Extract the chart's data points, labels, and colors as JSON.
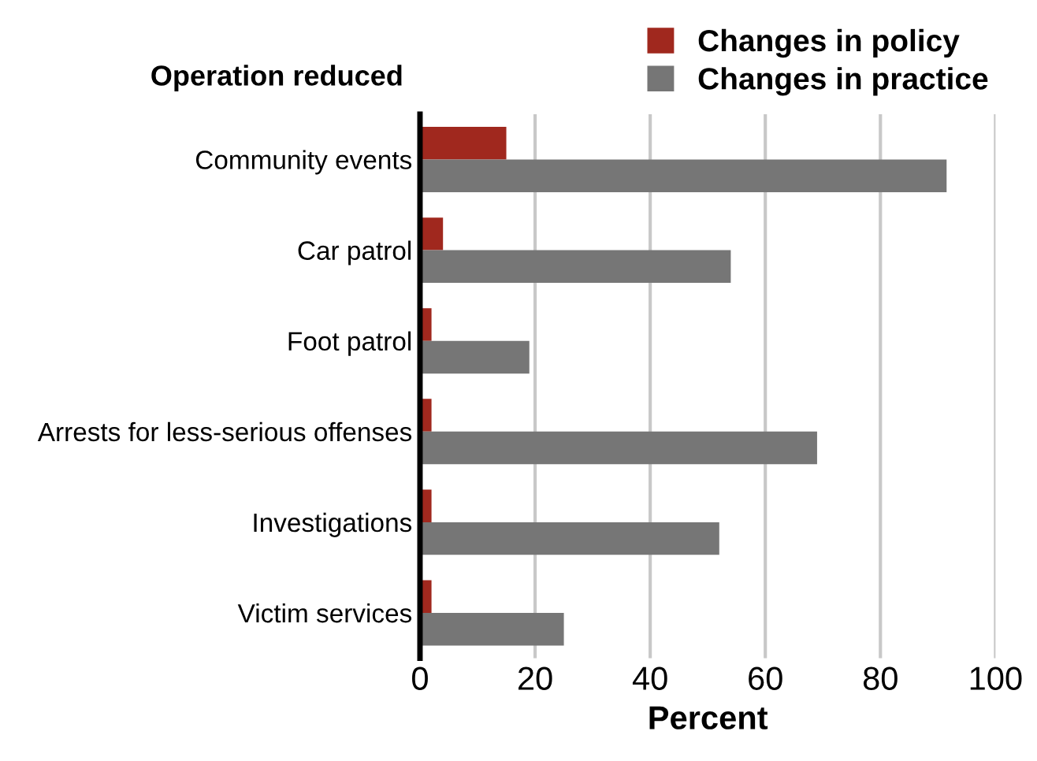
{
  "chart_data": {
    "type": "bar",
    "orientation": "horizontal",
    "ylabel": "Operation reduced",
    "xlabel": "Percent",
    "categories": [
      "Community events",
      "Car patrol",
      "Foot patrol",
      "Arrests for less-serious offenses",
      "Investigations",
      "Victim services"
    ],
    "series": [
      {
        "name": "Changes in policy",
        "color": "#a0281e",
        "values": [
          15,
          4,
          2,
          2,
          2,
          2
        ]
      },
      {
        "name": "Changes in practice",
        "color": "#767676",
        "values": [
          91.5,
          54,
          19,
          69,
          52,
          25
        ]
      }
    ],
    "xlim": [
      0,
      100
    ],
    "xticks": [
      0,
      20,
      40,
      60,
      80,
      100
    ],
    "grid": "x",
    "legend": "top right"
  }
}
